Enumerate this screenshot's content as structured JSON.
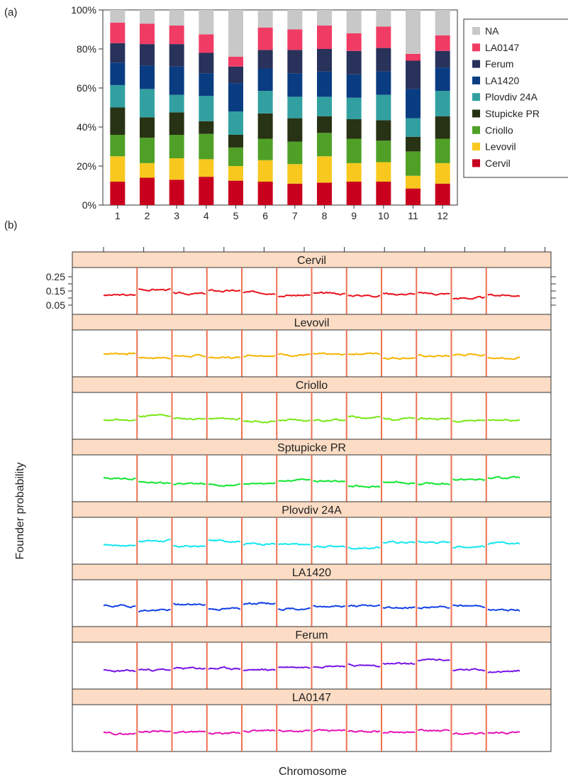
{
  "chart_data": [
    {
      "panel_label": "(a)",
      "type": "bar",
      "stacked": true,
      "categories": [
        "1",
        "2",
        "3",
        "4",
        "5",
        "6",
        "7",
        "8",
        "9",
        "10",
        "11",
        "12"
      ],
      "ylim": [
        0,
        100
      ],
      "y_ticks": [
        "0%",
        "20%",
        "40%",
        "60%",
        "80%",
        "100%"
      ],
      "legend_position": "right",
      "series": [
        {
          "name": "Cervil",
          "color": "#c8001e",
          "values": [
            12,
            14,
            13,
            14.5,
            12.5,
            12,
            11,
            11.5,
            12,
            12,
            8.5,
            11
          ]
        },
        {
          "name": "Levovil",
          "color": "#f8c81e",
          "values": [
            13,
            7.5,
            11,
            9,
            7.5,
            11,
            10,
            13.5,
            9.5,
            10,
            6.5,
            10.5
          ]
        },
        {
          "name": "Criollo",
          "color": "#50a028",
          "values": [
            11,
            13,
            12,
            13,
            9.5,
            11,
            11.5,
            12,
            12.5,
            11,
            12.5,
            12.5
          ]
        },
        {
          "name": "Stupicke PR",
          "color": "#283214",
          "values": [
            14,
            10.5,
            11.5,
            6.5,
            6.5,
            13,
            12,
            8.5,
            10,
            10.5,
            7.5,
            11.5
          ]
        },
        {
          "name": "Plovdiv 24A",
          "color": "#32a0a0",
          "values": [
            11.5,
            14.5,
            9,
            13,
            12,
            11.5,
            11,
            10,
            11,
            13,
            9.5,
            13
          ]
        },
        {
          "name": "LA1420",
          "color": "#0a3c82",
          "values": [
            11.5,
            12,
            14.5,
            11.5,
            14.5,
            11.5,
            12,
            13,
            12,
            12,
            15,
            12
          ]
        },
        {
          "name": "Ferum",
          "color": "#28325a",
          "values": [
            10,
            11,
            11.5,
            10.5,
            8.5,
            9.5,
            12,
            11.5,
            12,
            12,
            14.5,
            8.5
          ]
        },
        {
          "name": "LA0147",
          "color": "#f03c64",
          "values": [
            10.5,
            10.5,
            9.5,
            9.5,
            5,
            11.5,
            10.5,
            12,
            9,
            11,
            3.5,
            8
          ]
        },
        {
          "name": "NA",
          "color": "#c8c8c8",
          "values": [
            6.5,
            7,
            8,
            12.5,
            24,
            8.5,
            10,
            8,
            11.5,
            8.5,
            22.5,
            13
          ]
        }
      ]
    },
    {
      "panel_label": "(b)",
      "type": "line",
      "xlabel": "Chromosome",
      "ylabel": "Founder probability",
      "y_ticks": [
        "0.25",
        "0.15",
        "0.05"
      ],
      "ylim": [
        0,
        0.3
      ],
      "chromosome_count": 12,
      "panels": [
        {
          "name": "Cervil",
          "color": "#e8141e",
          "chrom_levels": [
            0.12,
            0.16,
            0.13,
            0.15,
            0.14,
            0.12,
            0.13,
            0.12,
            0.13,
            0.13,
            0.1,
            0.12
          ],
          "seed": 3
        },
        {
          "name": "Levovil",
          "color": "#f5b400",
          "chrom_levels": [
            0.15,
            0.12,
            0.13,
            0.12,
            0.14,
            0.14,
            0.14,
            0.15,
            0.12,
            0.13,
            0.14,
            0.12
          ],
          "seed": 7
        },
        {
          "name": "Criollo",
          "color": "#7ae614",
          "chrom_levels": [
            0.12,
            0.15,
            0.13,
            0.13,
            0.11,
            0.12,
            0.12,
            0.14,
            0.13,
            0.13,
            0.12,
            0.12
          ],
          "seed": 11
        },
        {
          "name": "Sptupicke PR",
          "color": "#14e632",
          "chrom_levels": [
            0.15,
            0.12,
            0.11,
            0.1,
            0.12,
            0.14,
            0.13,
            0.09,
            0.12,
            0.11,
            0.14,
            0.15
          ],
          "seed": 13
        },
        {
          "name": "Plovdiv 24A",
          "color": "#14e6f0",
          "chrom_levels": [
            0.12,
            0.15,
            0.11,
            0.15,
            0.13,
            0.12,
            0.11,
            0.1,
            0.14,
            0.14,
            0.11,
            0.13
          ],
          "seed": 17
        },
        {
          "name": "LA1420",
          "color": "#1441e6",
          "chrom_levels": [
            0.13,
            0.1,
            0.14,
            0.11,
            0.15,
            0.11,
            0.13,
            0.13,
            0.12,
            0.12,
            0.13,
            0.1
          ],
          "seed": 19
        },
        {
          "name": "Ferum",
          "color": "#7814e6",
          "chrom_levels": [
            0.11,
            0.12,
            0.13,
            0.13,
            0.12,
            0.14,
            0.15,
            0.15,
            0.16,
            0.19,
            0.12,
            0.11
          ],
          "seed": 23
        },
        {
          "name": "LA0147",
          "color": "#e614b4",
          "chrom_levels": [
            0.11,
            0.13,
            0.12,
            0.11,
            0.13,
            0.13,
            0.13,
            0.13,
            0.12,
            0.13,
            0.11,
            0.12
          ],
          "seed": 29
        }
      ]
    }
  ]
}
